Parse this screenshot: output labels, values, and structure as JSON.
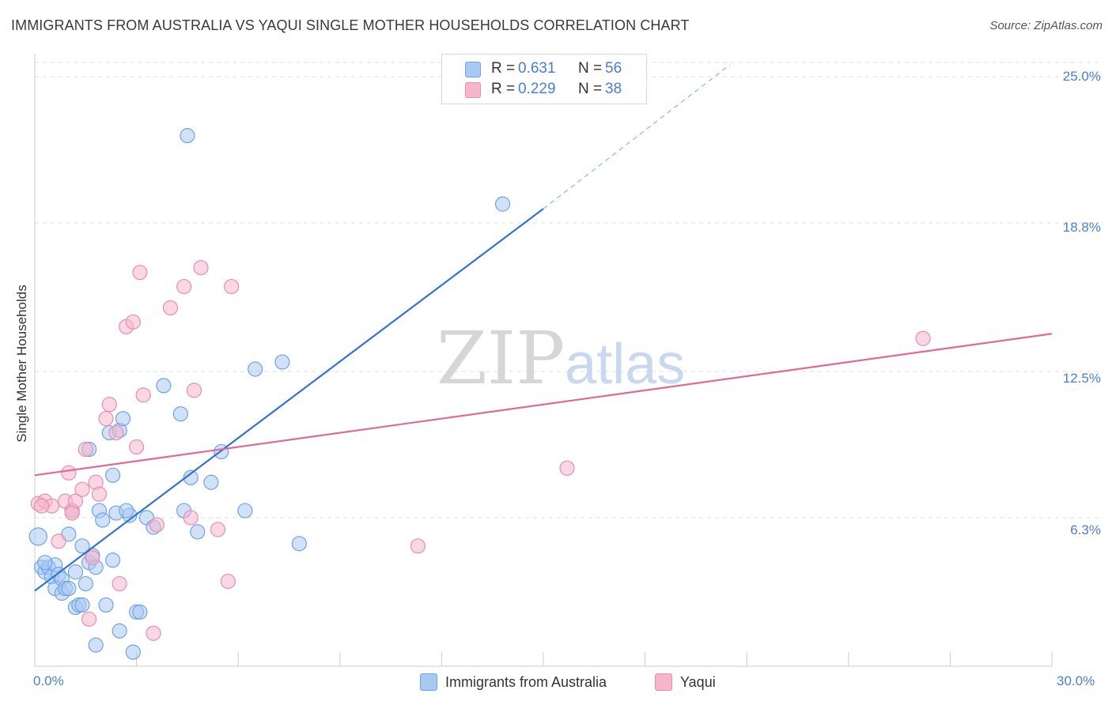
{
  "title": "IMMIGRANTS FROM AUSTRALIA VS YAQUI SINGLE MOTHER HOUSEHOLDS CORRELATION CHART",
  "source": "Source: ZipAtlas.com",
  "watermark": {
    "zip": "ZIP",
    "atlas": "atlas"
  },
  "stats": {
    "rows": [
      {
        "r_label": "R =",
        "r_value": "0.631",
        "n_label": "N =",
        "n_value": "56",
        "color": "#a9c8f2"
      },
      {
        "r_label": "R =",
        "r_value": "0.229",
        "n_label": "N =",
        "n_value": "38",
        "color": "#f6b6ca"
      }
    ]
  },
  "legend": [
    {
      "label": "Immigrants from Australia",
      "color": "#a9c8f2"
    },
    {
      "label": "Yaqui",
      "color": "#f6b6ca"
    }
  ],
  "chart_data": {
    "type": "scatter",
    "title": "IMMIGRANTS FROM AUSTRALIA VS YAQUI SINGLE MOTHER HOUSEHOLDS CORRELATION CHART",
    "xlabel": "",
    "ylabel": "Single Mother Households",
    "xlim": [
      0,
      30
    ],
    "ylim": [
      0,
      25
    ],
    "x_tick_labels": [
      "0.0%",
      "30.0%"
    ],
    "y_ticks": [
      6.3,
      12.5,
      18.8,
      25.0
    ],
    "y_tick_labels": [
      "6.3%",
      "12.5%",
      "18.8%",
      "25.0%"
    ],
    "grid": true,
    "legend_position": "bottom",
    "series": [
      {
        "name": "Immigrants from Australia",
        "color": "#6fa3e6",
        "fill": "#a9c8f2",
        "trend": {
          "x": [
            0,
            15
          ],
          "y": [
            3.2,
            19.4
          ],
          "dashed_to": [
            20.5,
            25.5
          ],
          "color": "#2f74d0"
        },
        "points": [
          [
            0.1,
            5.5
          ],
          [
            0.2,
            4.2
          ],
          [
            0.3,
            4.0
          ],
          [
            0.4,
            4.2
          ],
          [
            0.5,
            3.8
          ],
          [
            0.6,
            4.3
          ],
          [
            0.6,
            3.3
          ],
          [
            0.7,
            3.9
          ],
          [
            0.8,
            3.7
          ],
          [
            0.8,
            3.1
          ],
          [
            0.9,
            3.3
          ],
          [
            1.0,
            3.3
          ],
          [
            1.0,
            5.6
          ],
          [
            1.1,
            6.6
          ],
          [
            1.2,
            2.5
          ],
          [
            1.2,
            4.0
          ],
          [
            1.3,
            2.6
          ],
          [
            1.4,
            2.6
          ],
          [
            1.4,
            5.1
          ],
          [
            1.5,
            3.5
          ],
          [
            1.6,
            4.4
          ],
          [
            1.7,
            4.7
          ],
          [
            1.8,
            0.9
          ],
          [
            1.8,
            4.2
          ],
          [
            1.9,
            6.6
          ],
          [
            2.0,
            6.2
          ],
          [
            2.1,
            2.6
          ],
          [
            2.2,
            9.9
          ],
          [
            2.3,
            8.1
          ],
          [
            2.3,
            4.5
          ],
          [
            2.4,
            6.5
          ],
          [
            2.5,
            1.5
          ],
          [
            2.5,
            10.0
          ],
          [
            2.6,
            10.5
          ],
          [
            2.8,
            6.4
          ],
          [
            2.9,
            0.6
          ],
          [
            3.0,
            2.3
          ],
          [
            3.1,
            2.3
          ],
          [
            3.3,
            6.3
          ],
          [
            3.5,
            5.9
          ],
          [
            3.8,
            11.9
          ],
          [
            4.3,
            10.7
          ],
          [
            4.5,
            22.5
          ],
          [
            4.6,
            8.0
          ],
          [
            4.8,
            5.7
          ],
          [
            5.2,
            7.8
          ],
          [
            5.5,
            9.1
          ],
          [
            6.2,
            6.6
          ],
          [
            6.5,
            12.6
          ],
          [
            7.3,
            12.9
          ],
          [
            7.8,
            5.2
          ],
          [
            13.8,
            19.6
          ],
          [
            4.4,
            6.6
          ],
          [
            0.3,
            4.4
          ],
          [
            1.6,
            9.2
          ],
          [
            2.7,
            6.6
          ]
        ]
      },
      {
        "name": "Yaqui",
        "color": "#e690ad",
        "fill": "#f6b6ca",
        "trend": {
          "x": [
            0,
            30
          ],
          "y": [
            8.1,
            14.1
          ],
          "color": "#e06a95"
        },
        "points": [
          [
            0.1,
            6.9
          ],
          [
            0.3,
            7.0
          ],
          [
            0.5,
            6.8
          ],
          [
            0.7,
            5.3
          ],
          [
            0.9,
            7.0
          ],
          [
            1.0,
            8.2
          ],
          [
            1.1,
            6.6
          ],
          [
            1.2,
            7.0
          ],
          [
            1.4,
            7.5
          ],
          [
            1.5,
            9.2
          ],
          [
            1.6,
            2.0
          ],
          [
            1.8,
            7.8
          ],
          [
            1.9,
            7.3
          ],
          [
            2.1,
            10.5
          ],
          [
            2.2,
            11.1
          ],
          [
            2.4,
            9.9
          ],
          [
            2.5,
            3.5
          ],
          [
            2.7,
            14.4
          ],
          [
            3.0,
            9.3
          ],
          [
            3.1,
            16.7
          ],
          [
            3.2,
            11.5
          ],
          [
            3.5,
            1.4
          ],
          [
            3.6,
            6.0
          ],
          [
            4.0,
            15.2
          ],
          [
            4.4,
            16.1
          ],
          [
            4.6,
            6.3
          ],
          [
            4.7,
            11.7
          ],
          [
            4.9,
            16.9
          ],
          [
            5.4,
            5.8
          ],
          [
            5.7,
            3.6
          ],
          [
            5.8,
            16.1
          ],
          [
            11.3,
            5.1
          ],
          [
            15.7,
            8.4
          ],
          [
            26.2,
            13.9
          ],
          [
            0.2,
            6.8
          ],
          [
            1.1,
            6.5
          ],
          [
            1.7,
            4.6
          ],
          [
            2.9,
            14.6
          ]
        ]
      }
    ]
  }
}
